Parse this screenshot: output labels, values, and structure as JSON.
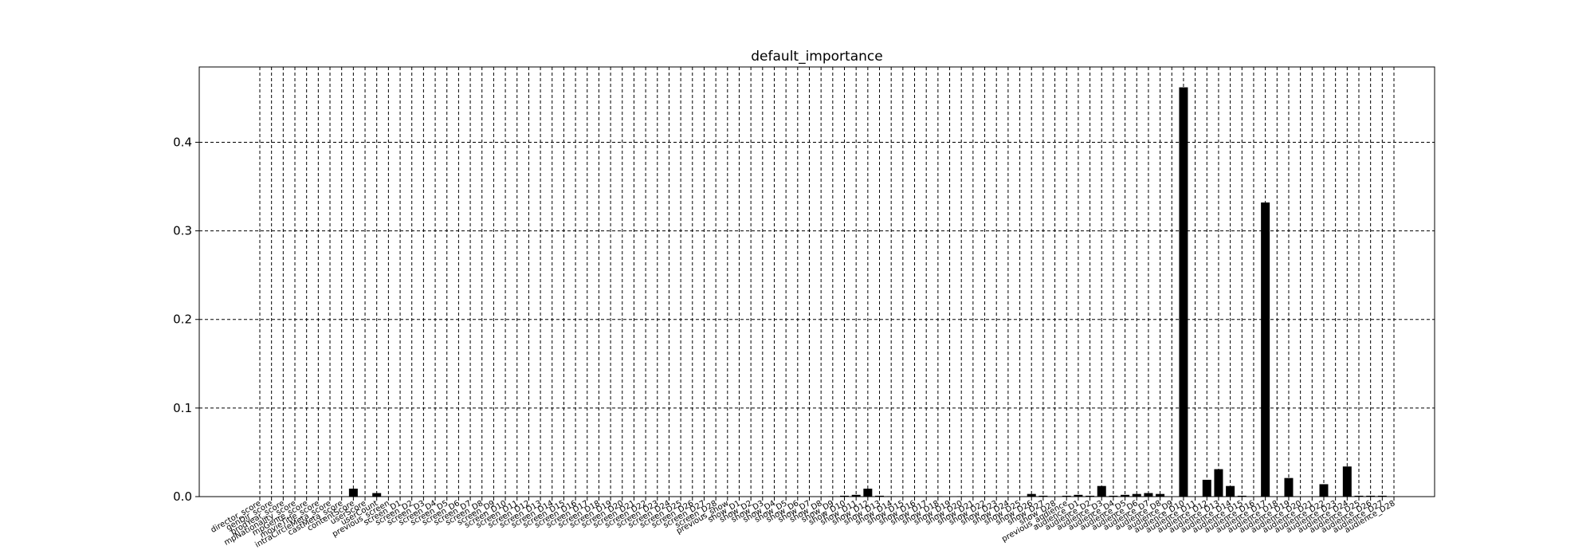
{
  "chart_data": {
    "type": "bar",
    "title": "default_importance",
    "xlabel": "",
    "ylabel": "",
    "ylim": [
      0,
      0.485
    ],
    "yticks": [
      0.0,
      0.1,
      0.2,
      0.3,
      0.4
    ],
    "ytick_labels": [
      "0.0",
      "0.1",
      "0.2",
      "0.3",
      "0.4"
    ],
    "grid": "dashed both axes",
    "bar_color": "#000000",
    "categories": [
      "director_score",
      "genDir_score",
      "prodYear_score",
      "mpNationality_score",
      "mpGenre_score",
      "movieTitle_score",
      "intraCircleMeta_score",
      "castMeta_score",
      "contentScore",
      "userScore",
      "userCount",
      "previous_screen",
      "screen_D1",
      "screen_D2",
      "screen_D3",
      "screen_D4",
      "screen_D5",
      "screen_D6",
      "screen_D7",
      "screen_D8",
      "screen_D9",
      "screen_D10",
      "screen_D11",
      "screen_D12",
      "screen_D13",
      "screen_D14",
      "screen_D15",
      "screen_D16",
      "screen_D17",
      "screen_D18",
      "screen_D19",
      "screen_D20",
      "screen_D21",
      "screen_D22",
      "screen_D23",
      "screen_D24",
      "screen_D25",
      "screen_D26",
      "screen_D27",
      "screen_D28",
      "previous_show",
      "show_D1",
      "show_D2",
      "show_D3",
      "show_D4",
      "show_D5",
      "show_D6",
      "show_D7",
      "show_D8",
      "show_D9",
      "show_D10",
      "show_D11",
      "show_D12",
      "show_D13",
      "show_D14",
      "show_D15",
      "show_D16",
      "show_D17",
      "show_D18",
      "show_D19",
      "show_D20",
      "show_D21",
      "show_D22",
      "show_D23",
      "show_D24",
      "show_D25",
      "show_D26",
      "show_D27",
      "show_D28",
      "previous_audience",
      "audience_D1",
      "audience_D2",
      "audience_D3",
      "audience_D4",
      "audience_D5",
      "audience_D6",
      "audience_D7",
      "audience_D8",
      "audience_D9",
      "audience_D10",
      "audience_D11",
      "audience_D12",
      "audience_D13",
      "audience_D14",
      "audience_D15",
      "audience_D16",
      "audience_D17",
      "audience_D18",
      "audience_D19",
      "audience_D20",
      "audience_D21",
      "audience_D22",
      "audience_D23",
      "audience_D24",
      "audience_D25",
      "audience_D26",
      "audience_D27",
      "audience_D28"
    ],
    "values": [
      0,
      0,
      0,
      0,
      0,
      0,
      0,
      0,
      0.009,
      0,
      0.004,
      0,
      0,
      0,
      0,
      0,
      0,
      0,
      0,
      0,
      0,
      0,
      0,
      0,
      0,
      0,
      0,
      0,
      0,
      0,
      0,
      0,
      0,
      0,
      0,
      0,
      0,
      0,
      0,
      0,
      0,
      0,
      0,
      0,
      0,
      0,
      0,
      0,
      0,
      0.0005,
      0.001,
      0.002,
      0.009,
      0.001,
      0.0005,
      0,
      0.0005,
      0,
      0.0005,
      0,
      0.0005,
      0,
      0.0005,
      0,
      0,
      0,
      0.003,
      0.001,
      0,
      0.001,
      0.002,
      0.001,
      0.012,
      0.001,
      0.002,
      0.003,
      0.004,
      0.003,
      0,
      0.462,
      0,
      0.019,
      0.031,
      0.012,
      0.001,
      0,
      0.332,
      0,
      0.021,
      0,
      0,
      0.014,
      0,
      0.034,
      0.001,
      0.001,
      0.001,
      0
    ]
  }
}
